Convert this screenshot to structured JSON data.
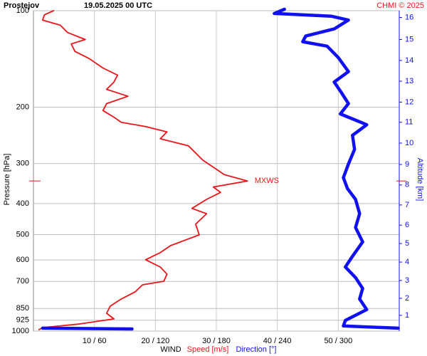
{
  "chart_data": {
    "type": "line",
    "title": "Prostejov",
    "subtitle": "19.05.2025 00 UTC",
    "credit": "CHMI © 2025",
    "ylabel": "Pressure [hPa]",
    "y2label": "Altitude [km]",
    "xlabel": "WIND",
    "ylim": [
      1000,
      100
    ],
    "log_y": true,
    "yticks": [
      100,
      200,
      300,
      400,
      500,
      600,
      700,
      850,
      925,
      1000
    ],
    "xlim": [
      0,
      60
    ],
    "xticks": [
      {
        "value": 10,
        "label": "10 / 60"
      },
      {
        "value": 20,
        "label": "20 / 120"
      },
      {
        "value": 30,
        "label": "30 / 180"
      },
      {
        "value": 40,
        "label": "40 / 240"
      },
      {
        "value": 50,
        "label": "50 / 300"
      }
    ],
    "x2lim": [
      0,
      360
    ],
    "grid": true,
    "series": [
      {
        "name": "Speed [m/s]",
        "color": "#e8161b",
        "pressure": [
          100,
          103,
          107,
          111,
          117,
          123,
          127,
          134,
          141,
          151,
          159,
          167,
          176,
          185,
          195,
          205,
          215,
          223,
          230,
          239,
          251,
          264,
          278,
          293,
          308,
          325,
          340,
          355,
          369,
          388,
          414,
          430,
          464,
          501,
          541,
          569,
          599,
          631,
          664,
          699,
          717,
          754,
          794,
          836,
          880,
          916,
          951,
          975,
          990
        ],
        "values": [
          3.3,
          1.8,
          1.5,
          4.4,
          5.6,
          8.5,
          6.2,
          6.8,
          9.1,
          11.4,
          13.8,
          13.2,
          12.0,
          15.5,
          12.0,
          11.4,
          13.2,
          14.4,
          18.4,
          21.9,
          20.8,
          25.4,
          26.6,
          27.8,
          29.5,
          31.3,
          35.1,
          29.5,
          30.7,
          28.4,
          26.0,
          28.4,
          26.6,
          27.2,
          22.5,
          20.8,
          18.4,
          20.8,
          21.9,
          21.4,
          17.9,
          16.7,
          14.4,
          12.6,
          12.0,
          13.2,
          7.4,
          1.5,
          0.9
        ]
      },
      {
        "name": "Direction [°]",
        "color": "#1010f0",
        "axis": "x2",
        "pressure": [
          99,
          102,
          104,
          107,
          114,
          120,
          125,
          129,
          140,
          155,
          167,
          180,
          195,
          210,
          227,
          245,
          271,
          301,
          332,
          359,
          388,
          430,
          475,
          527,
          584,
          631,
          681,
          736,
          794,
          857,
          926,
          964,
          979,
          null,
          985,
          979
        ],
        "values": [
          247,
          237,
          293,
          310,
          296,
          268,
          265,
          289,
          300,
          310,
          296,
          303,
          310,
          302,
          328,
          314,
          316,
          310,
          305,
          309,
          317,
          321,
          317,
          324,
          314,
          307,
          317,
          324,
          321,
          328,
          307,
          305,
          359,
          null,
          97,
          9
        ]
      }
    ],
    "altitude_ticks": [
      {
        "km": 1,
        "pressure": 893
      },
      {
        "km": 2,
        "pressure": 790
      },
      {
        "km": 3,
        "pressure": 695
      },
      {
        "km": 4,
        "pressure": 609
      },
      {
        "km": 5,
        "pressure": 533
      },
      {
        "km": 6,
        "pressure": 467
      },
      {
        "km": 7,
        "pressure": 404
      },
      {
        "km": 8,
        "pressure": 350
      },
      {
        "km": 9,
        "pressure": 302
      },
      {
        "km": 10,
        "pressure": 259
      },
      {
        "km": 11,
        "pressure": 223
      },
      {
        "km": 12,
        "pressure": 193
      },
      {
        "km": 13,
        "pressure": 166
      },
      {
        "km": 14,
        "pressure": 143
      },
      {
        "km": 15,
        "pressure": 123
      },
      {
        "km": 16,
        "pressure": 105
      }
    ],
    "annotation": {
      "text": "MXWS",
      "pressure": 340,
      "speed": 35.1
    }
  }
}
